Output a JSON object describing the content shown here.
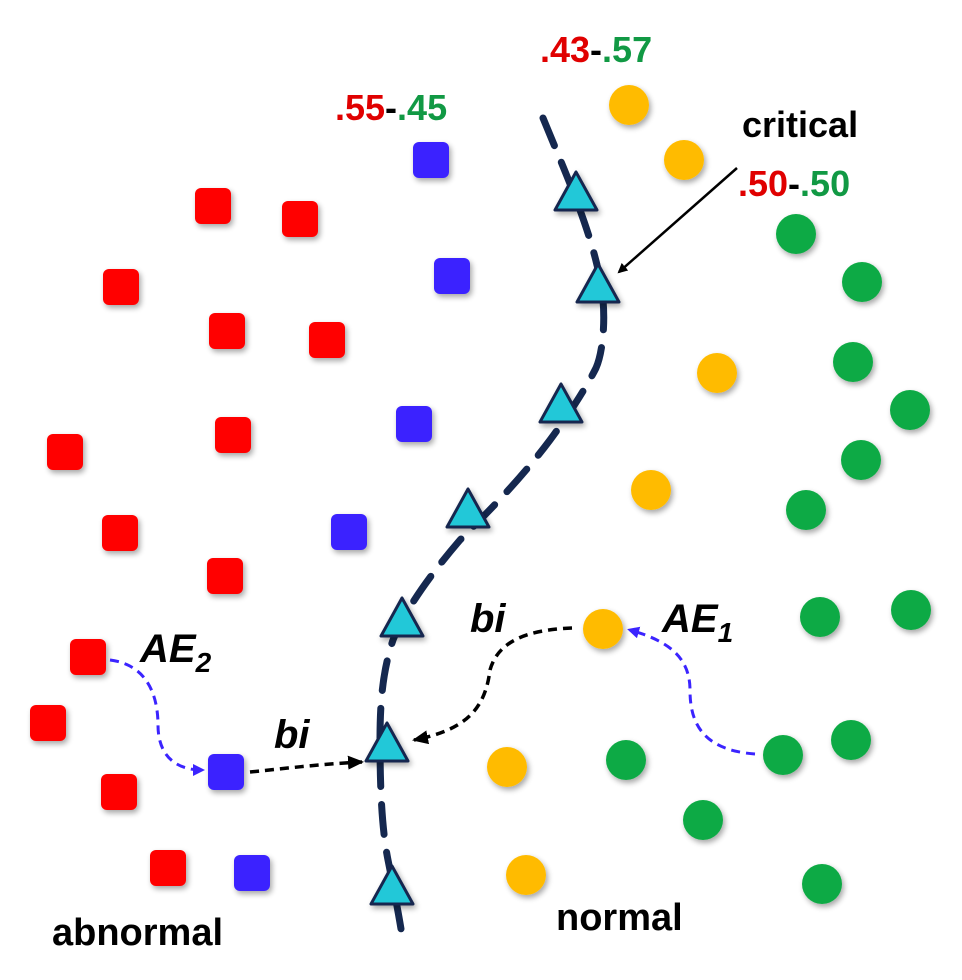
{
  "colors": {
    "abnormal": "#ff0000",
    "adversarial": "#3b24ff",
    "uncertain": "#ffbb00",
    "normal": "#11aa44",
    "boundary_sample": "#22c8d8",
    "boundary_line": "#15284f",
    "perturb_path": "#3b24ff",
    "bi_path": "#000000",
    "prob_abnormal": "#e00000",
    "prob_normal": "#119944"
  },
  "labels": {
    "abnormal": "abnormal",
    "normal": "normal",
    "critical": "critical",
    "ae1_main": "AE",
    "ae1_sub": "1",
    "ae2_main": "AE",
    "ae2_sub": "2",
    "bi_top": "bi",
    "bi_bottom": "bi"
  },
  "probabilities": {
    "left": {
      "abnormal": ".55",
      "sep": "-",
      "normal": ".45"
    },
    "top": {
      "abnormal": ".43",
      "sep": "-",
      "normal": ".57"
    },
    "critical": {
      "abnormal": ".50",
      "sep": "-",
      "normal": ".50"
    }
  }
}
